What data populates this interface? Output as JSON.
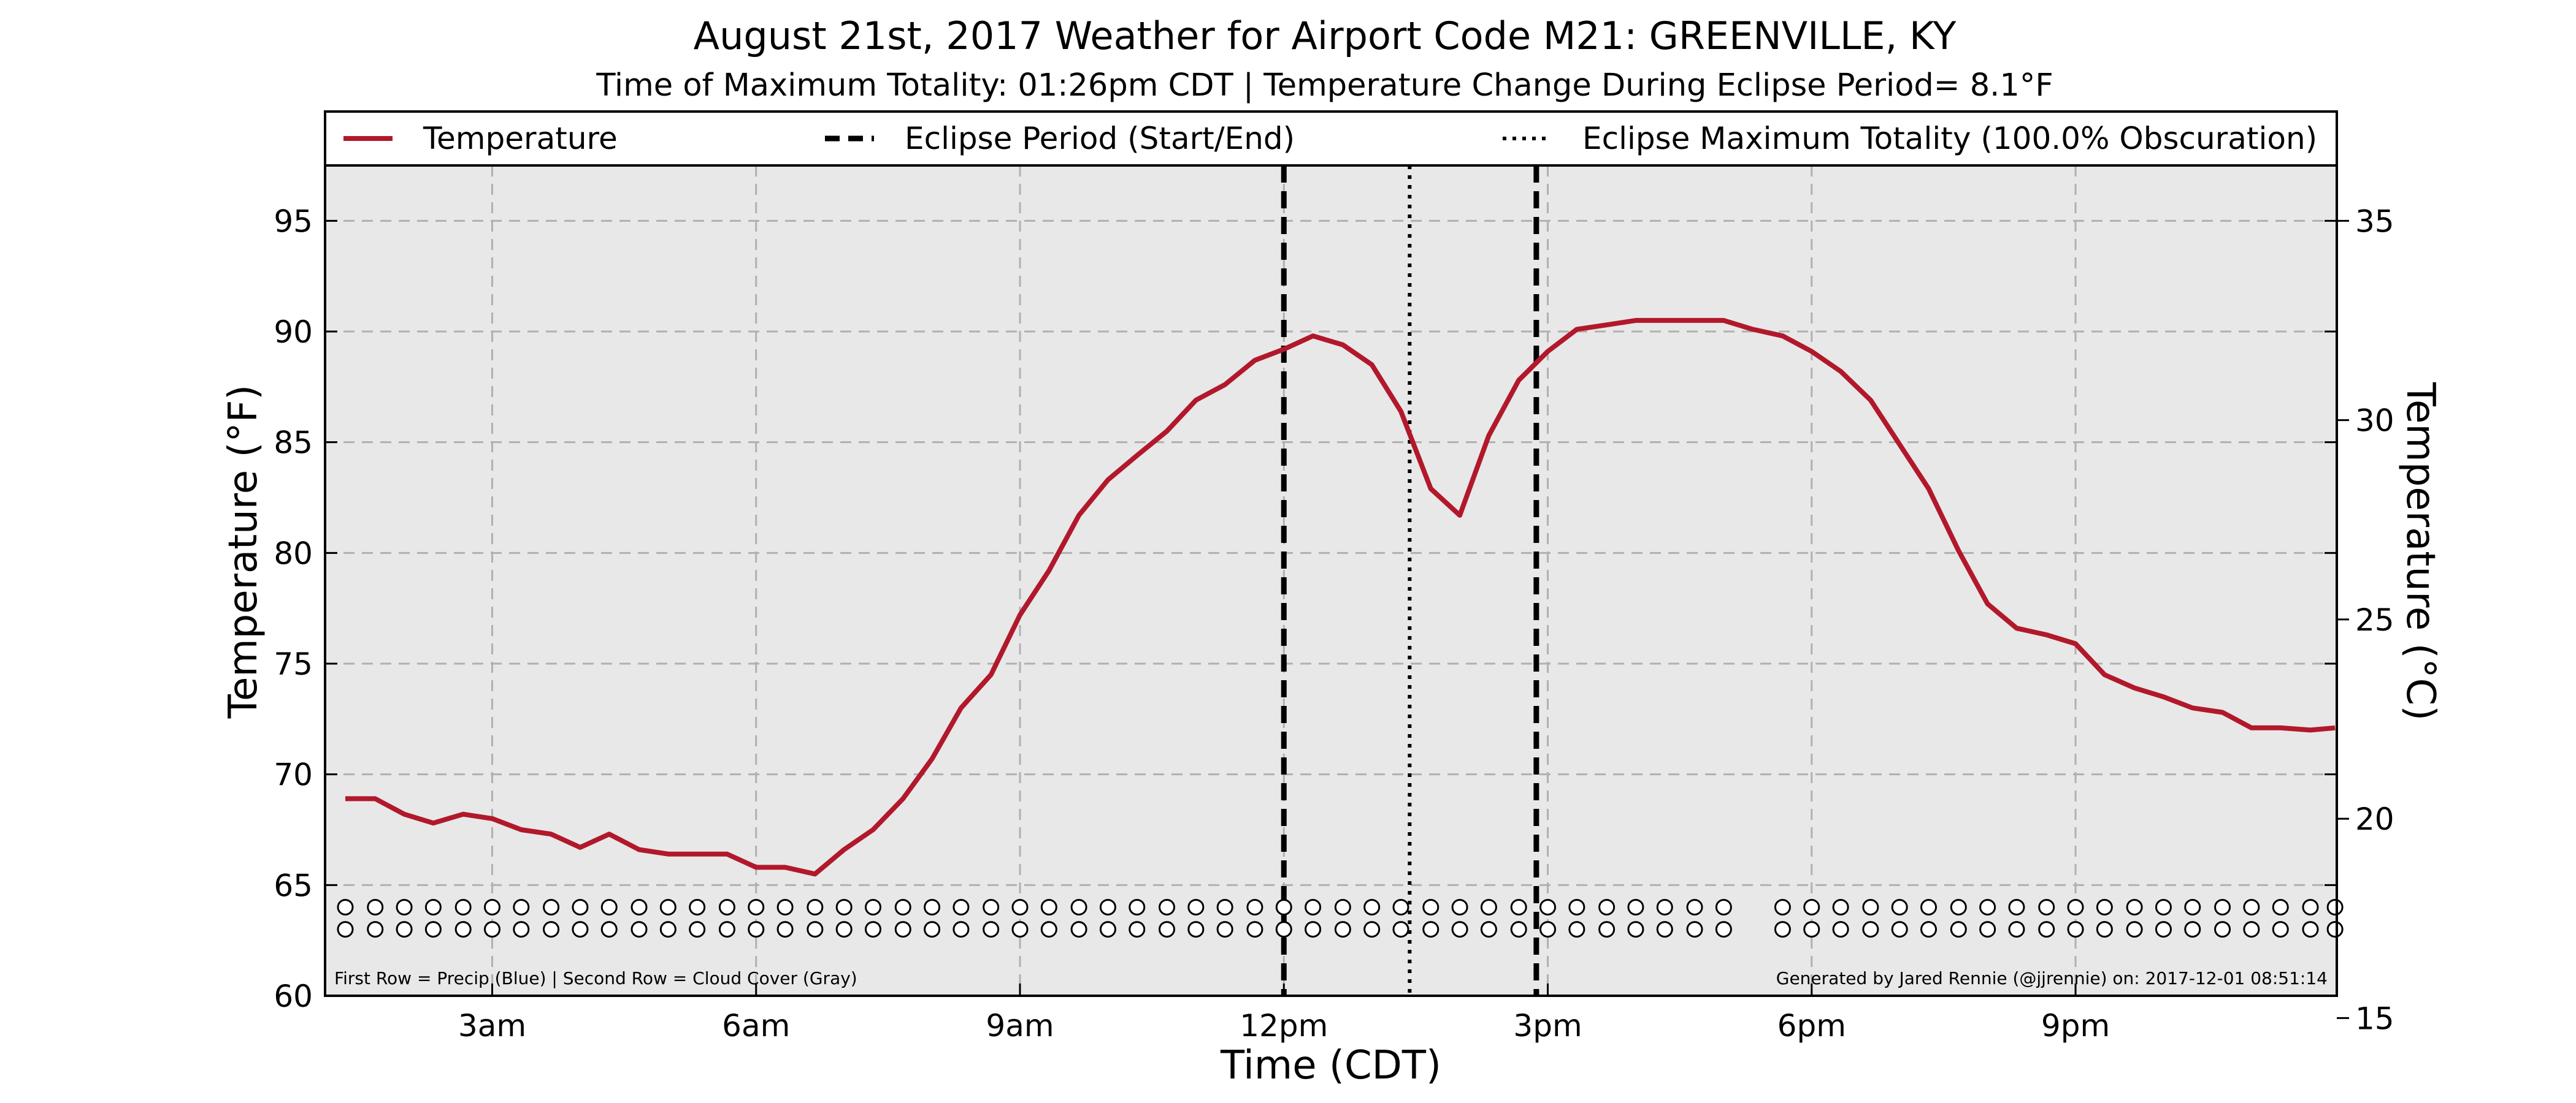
{
  "chart_data": {
    "type": "line",
    "title": "August 21st, 2017 Weather for Airport Code M21: GREENVILLE, KY",
    "subtitle": "Time of Maximum Totality: 01:26pm CDT | Temperature Change During Eclipse Period= 8.1°F",
    "xlabel": "Time (CDT)",
    "ylabel": "Temperature (°F)",
    "ylabel_right": "Temperature (°C)",
    "xlim": [
      1.1,
      23.97
    ],
    "ylim": [
      60,
      97.5
    ],
    "ylim_right_celsius": [
      15.56,
      36.39
    ],
    "x_ticks": [
      {
        "x": 3,
        "label": "3am"
      },
      {
        "x": 6,
        "label": "6am"
      },
      {
        "x": 9,
        "label": "9am"
      },
      {
        "x": 12,
        "label": "12pm"
      },
      {
        "x": 15,
        "label": "3pm"
      },
      {
        "x": 18,
        "label": "6pm"
      },
      {
        "x": 21,
        "label": "9pm"
      }
    ],
    "y_ticks": [
      60,
      65,
      70,
      75,
      80,
      85,
      90,
      95
    ],
    "y_ticks_right": [
      15,
      20,
      25,
      30,
      35
    ],
    "grid": true,
    "legend": {
      "placement": "top",
      "entries": [
        {
          "label": "Temperature",
          "style": "solid",
          "color": "#b2182b"
        },
        {
          "label": "Eclipse Period (Start/End)",
          "style": "dashed",
          "color": "#000000"
        },
        {
          "label": "Eclipse Maximum Totality (100.0% Obscuration)",
          "style": "dotted",
          "color": "#000000"
        }
      ]
    },
    "series": [
      {
        "name": "Temperature",
        "color": "#b2182b",
        "x": [
          1.33,
          1.67,
          2.0,
          2.33,
          2.67,
          3.0,
          3.33,
          3.67,
          4.0,
          4.33,
          4.67,
          5.0,
          5.33,
          5.67,
          6.0,
          6.33,
          6.67,
          7.0,
          7.33,
          7.67,
          8.0,
          8.33,
          8.67,
          9.0,
          9.33,
          9.67,
          10.0,
          10.33,
          10.67,
          11.0,
          11.33,
          11.67,
          12.0,
          12.33,
          12.67,
          13.0,
          13.33,
          13.67,
          14.0,
          14.33,
          14.67,
          15.0,
          15.33,
          15.67,
          16.0,
          16.33,
          16.67,
          17.0,
          17.33,
          17.67,
          18.0,
          18.33,
          18.67,
          19.0,
          19.33,
          19.67,
          20.0,
          20.33,
          20.67,
          21.0,
          21.33,
          21.67,
          22.0,
          22.33,
          22.67,
          23.0,
          23.33,
          23.67,
          23.95
        ],
        "values": [
          68.9,
          68.9,
          68.2,
          67.8,
          68.2,
          68.0,
          67.5,
          67.3,
          66.7,
          67.3,
          66.6,
          66.4,
          66.4,
          66.4,
          65.8,
          65.8,
          65.5,
          66.6,
          67.5,
          68.9,
          70.7,
          73.0,
          74.5,
          77.2,
          79.2,
          81.7,
          83.3,
          84.4,
          85.5,
          86.9,
          87.6,
          88.7,
          89.2,
          89.8,
          89.4,
          88.5,
          86.4,
          82.9,
          81.7,
          85.3,
          87.8,
          89.1,
          90.1,
          90.3,
          90.5,
          90.5,
          90.5,
          90.5,
          90.1,
          89.8,
          89.1,
          88.2,
          86.9,
          84.9,
          82.9,
          80.1,
          77.7,
          76.6,
          76.3,
          75.9,
          74.5,
          73.9,
          73.5,
          73.0,
          72.8,
          72.1,
          72.1,
          72.0,
          72.1
        ]
      }
    ],
    "eclipse_start_x": 12.0,
    "eclipse_max_x": 13.43,
    "eclipse_end_x": 14.87,
    "markers": {
      "rows": [
        {
          "row": 1,
          "meaning": "Precip",
          "y": 64.0
        },
        {
          "row": 2,
          "meaning": "Cloud Cover",
          "y": 63.0
        }
      ],
      "x": [
        1.33,
        1.67,
        2.0,
        2.33,
        2.67,
        3.0,
        3.33,
        3.67,
        4.0,
        4.33,
        4.67,
        5.0,
        5.33,
        5.67,
        6.0,
        6.33,
        6.67,
        7.0,
        7.33,
        7.67,
        8.0,
        8.33,
        8.67,
        9.0,
        9.33,
        9.67,
        10.0,
        10.33,
        10.67,
        11.0,
        11.33,
        11.67,
        12.0,
        12.33,
        12.67,
        13.0,
        13.33,
        13.67,
        14.0,
        14.33,
        14.67,
        15.0,
        15.33,
        15.67,
        16.0,
        16.33,
        16.67,
        17.0,
        17.67,
        18.0,
        18.33,
        18.67,
        19.0,
        19.33,
        19.67,
        20.0,
        20.33,
        20.67,
        21.0,
        21.33,
        21.67,
        22.0,
        22.33,
        22.67,
        23.0,
        23.33,
        23.67,
        23.95
      ]
    },
    "footnote_left": "First Row = Precip (Blue) | Second Row = Cloud Cover (Gray)",
    "footnote_right": "Generated by Jared Rennie (@jjrennie) on: 2017-12-01 08:51:14"
  },
  "colors": {
    "temperature": "#b2182b",
    "plot_background": "#e8e8e8",
    "grid": "#b0b0b0"
  }
}
